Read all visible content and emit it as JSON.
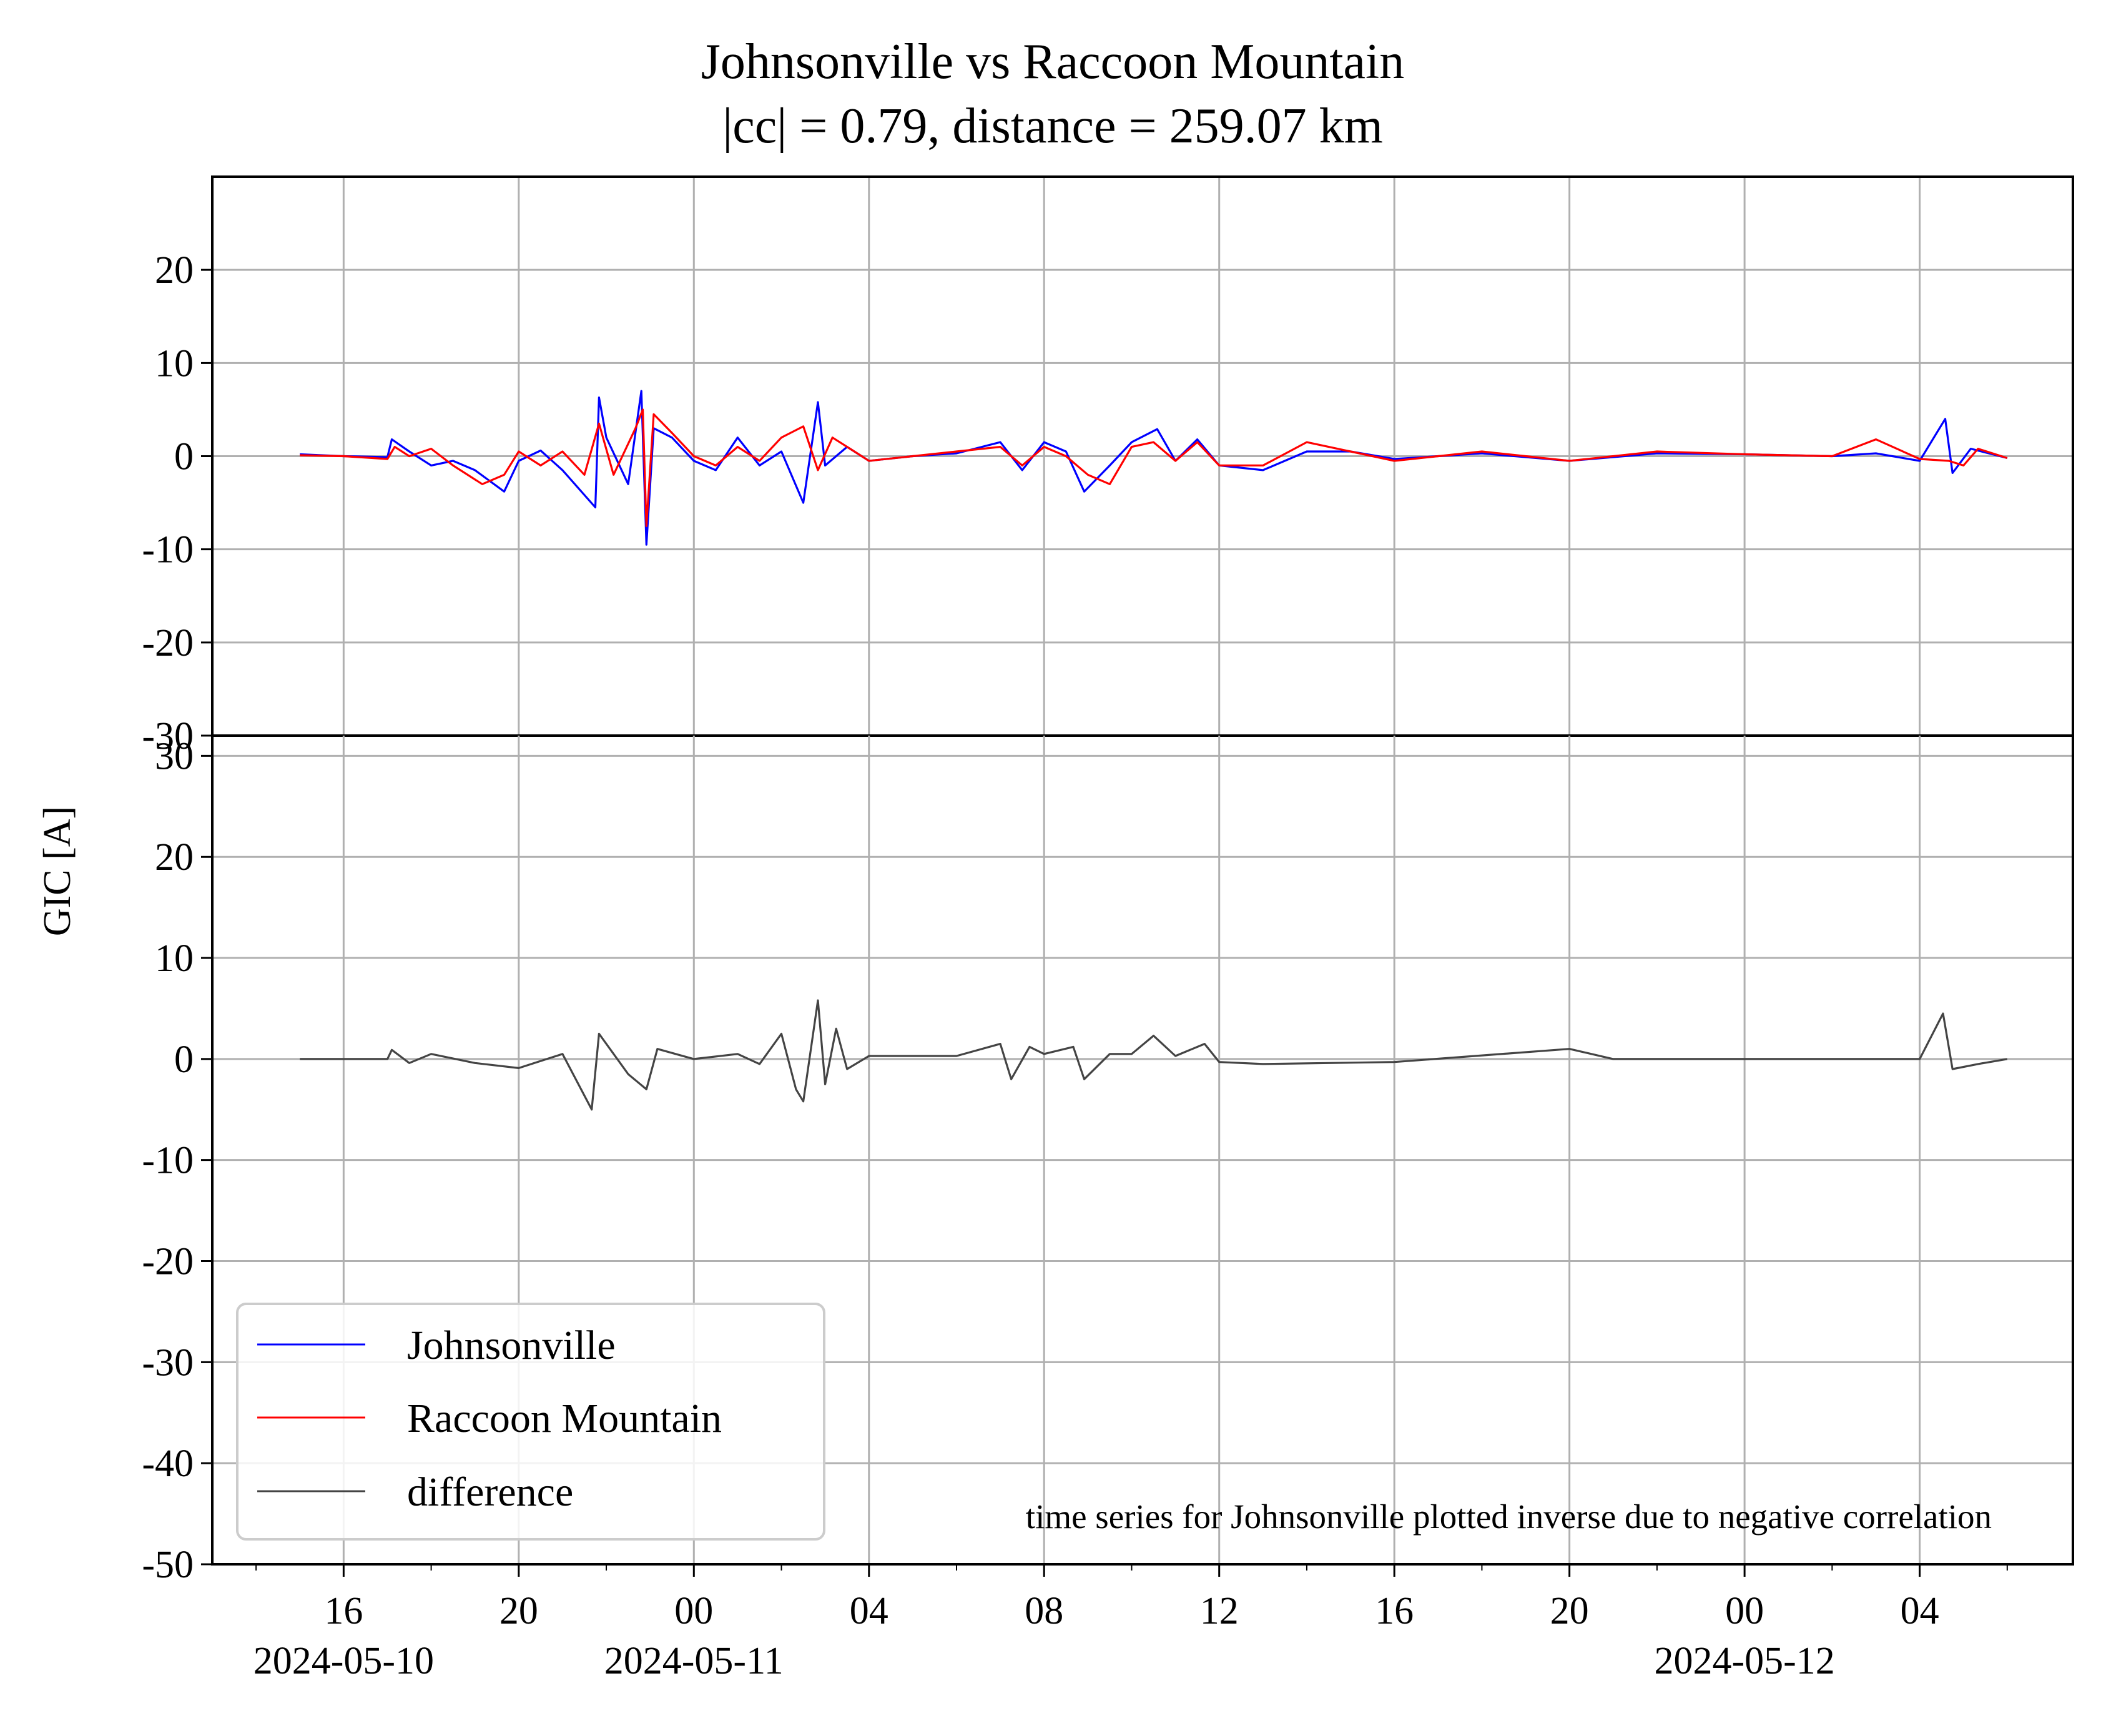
{
  "chart_data": {
    "type": "line",
    "title": "Johnsonville vs Raccoon Mountain",
    "subtitle": "|cc| = 0.79, distance = 259.07 km",
    "ylabel": "GIC [A]",
    "xlabel": "",
    "note": "time series for Johnsonville plotted inverse due to negative correlation",
    "x_range": [
      "2024-05-10 13:00",
      "2024-05-12 07:30"
    ],
    "x_tick_labels": [
      "16",
      "20",
      "00",
      "04",
      "08",
      "12",
      "16",
      "20",
      "00",
      "04"
    ],
    "x_date_labels": [
      "2024-05-10",
      "2024-05-11",
      "2024-05-12"
    ],
    "grid": true,
    "legend_position": "lower-left",
    "panels": [
      {
        "ylim": [
          -30,
          30
        ],
        "y_ticks": [
          "20",
          "10",
          "0",
          "-10",
          "-20",
          "-30"
        ],
        "series": [
          {
            "name": "Johnsonville",
            "color": "#0000ff",
            "points": [
              [
                "2024-05-10 15:00",
                0.2
              ],
              [
                "2024-05-10 16:00",
                0.0
              ],
              [
                "2024-05-10 17:00",
                -0.1
              ],
              [
                "2024-05-10 17:06",
                1.8
              ],
              [
                "2024-05-10 17:30",
                0.5
              ],
              [
                "2024-05-10 18:00",
                -1.0
              ],
              [
                "2024-05-10 18:30",
                -0.5
              ],
              [
                "2024-05-10 19:00",
                -1.5
              ],
              [
                "2024-05-10 19:40",
                -3.8
              ],
              [
                "2024-05-10 20:00",
                -0.5
              ],
              [
                "2024-05-10 20:30",
                0.6
              ],
              [
                "2024-05-10 21:00",
                -1.5
              ],
              [
                "2024-05-10 21:45",
                -5.5
              ],
              [
                "2024-05-10 21:50",
                6.3
              ],
              [
                "2024-05-10 22:00",
                2.0
              ],
              [
                "2024-05-10 22:30",
                -3.0
              ],
              [
                "2024-05-10 22:48",
                7.0
              ],
              [
                "2024-05-10 22:55",
                -9.5
              ],
              [
                "2024-05-10 23:05",
                3.0
              ],
              [
                "2024-05-10 23:30",
                2.0
              ],
              [
                "2024-05-11 00:00",
                -0.5
              ],
              [
                "2024-05-11 00:30",
                -1.5
              ],
              [
                "2024-05-11 01:00",
                2.0
              ],
              [
                "2024-05-11 01:30",
                -1.0
              ],
              [
                "2024-05-11 02:00",
                0.5
              ],
              [
                "2024-05-11 02:30",
                -5.0
              ],
              [
                "2024-05-11 02:50",
                5.8
              ],
              [
                "2024-05-11 03:00",
                -1.0
              ],
              [
                "2024-05-11 03:30",
                1.0
              ],
              [
                "2024-05-11 04:00",
                -0.5
              ],
              [
                "2024-05-11 05:00",
                0.0
              ],
              [
                "2024-05-11 06:00",
                0.3
              ],
              [
                "2024-05-11 07:00",
                1.5
              ],
              [
                "2024-05-11 07:30",
                -1.5
              ],
              [
                "2024-05-11 08:00",
                1.5
              ],
              [
                "2024-05-11 08:30",
                0.5
              ],
              [
                "2024-05-11 08:55",
                -3.8
              ],
              [
                "2024-05-11 09:30",
                -1.0
              ],
              [
                "2024-05-11 10:00",
                1.5
              ],
              [
                "2024-05-11 10:35",
                2.9
              ],
              [
                "2024-05-11 11:00",
                -0.5
              ],
              [
                "2024-05-11 11:30",
                1.8
              ],
              [
                "2024-05-11 12:00",
                -1.0
              ],
              [
                "2024-05-11 13:00",
                -1.5
              ],
              [
                "2024-05-11 14:00",
                0.5
              ],
              [
                "2024-05-11 15:00",
                0.5
              ],
              [
                "2024-05-11 16:00",
                -0.3
              ],
              [
                "2024-05-11 18:00",
                0.3
              ],
              [
                "2024-05-11 20:00",
                -0.5
              ],
              [
                "2024-05-11 22:00",
                0.3
              ],
              [
                "2024-05-12 00:00",
                0.2
              ],
              [
                "2024-05-12 02:00",
                0.0
              ],
              [
                "2024-05-12 03:00",
                0.3
              ],
              [
                "2024-05-12 04:00",
                -0.5
              ],
              [
                "2024-05-12 04:35",
                4.0
              ],
              [
                "2024-05-12 04:45",
                -1.8
              ],
              [
                "2024-05-12 05:10",
                0.8
              ],
              [
                "2024-05-12 06:00",
                -0.2
              ]
            ]
          },
          {
            "name": "Raccoon Mountain",
            "color": "#ff0000",
            "points": [
              [
                "2024-05-10 15:00",
                0.1
              ],
              [
                "2024-05-10 16:00",
                0.0
              ],
              [
                "2024-05-10 17:00",
                -0.3
              ],
              [
                "2024-05-10 17:10",
                1.0
              ],
              [
                "2024-05-10 17:30",
                0.0
              ],
              [
                "2024-05-10 18:00",
                0.8
              ],
              [
                "2024-05-10 18:30",
                -1.0
              ],
              [
                "2024-05-10 19:10",
                -3.0
              ],
              [
                "2024-05-10 19:40",
                -2.0
              ],
              [
                "2024-05-10 20:00",
                0.5
              ],
              [
                "2024-05-10 20:30",
                -1.0
              ],
              [
                "2024-05-10 21:00",
                0.5
              ],
              [
                "2024-05-10 21:30",
                -2.0
              ],
              [
                "2024-05-10 21:50",
                3.5
              ],
              [
                "2024-05-10 22:10",
                -2.0
              ],
              [
                "2024-05-10 22:40",
                3.0
              ],
              [
                "2024-05-10 22:50",
                5.0
              ],
              [
                "2024-05-10 22:55",
                -7.5
              ],
              [
                "2024-05-10 23:05",
                4.5
              ],
              [
                "2024-05-10 23:30",
                2.5
              ],
              [
                "2024-05-11 00:00",
                0.0
              ],
              [
                "2024-05-11 00:30",
                -1.0
              ],
              [
                "2024-05-11 01:00",
                1.0
              ],
              [
                "2024-05-11 01:30",
                -0.5
              ],
              [
                "2024-05-11 02:00",
                2.0
              ],
              [
                "2024-05-11 02:30",
                3.2
              ],
              [
                "2024-05-11 02:50",
                -1.5
              ],
              [
                "2024-05-11 03:10",
                2.0
              ],
              [
                "2024-05-11 03:40",
                0.5
              ],
              [
                "2024-05-11 04:00",
                -0.5
              ],
              [
                "2024-05-11 05:00",
                0.0
              ],
              [
                "2024-05-11 06:00",
                0.5
              ],
              [
                "2024-05-11 07:00",
                1.0
              ],
              [
                "2024-05-11 07:30",
                -1.0
              ],
              [
                "2024-05-11 08:00",
                1.0
              ],
              [
                "2024-05-11 08:30",
                0.0
              ],
              [
                "2024-05-11 09:00",
                -2.0
              ],
              [
                "2024-05-11 09:30",
                -3.0
              ],
              [
                "2024-05-11 10:00",
                1.0
              ],
              [
                "2024-05-11 10:30",
                1.5
              ],
              [
                "2024-05-11 11:00",
                -0.5
              ],
              [
                "2024-05-11 11:30",
                1.5
              ],
              [
                "2024-05-11 12:00",
                -1.0
              ],
              [
                "2024-05-11 13:00",
                -1.0
              ],
              [
                "2024-05-11 14:00",
                1.5
              ],
              [
                "2024-05-11 15:00",
                0.5
              ],
              [
                "2024-05-11 16:00",
                -0.5
              ],
              [
                "2024-05-11 18:00",
                0.5
              ],
              [
                "2024-05-11 20:00",
                -0.5
              ],
              [
                "2024-05-11 22:00",
                0.5
              ],
              [
                "2024-05-12 00:00",
                0.2
              ],
              [
                "2024-05-12 02:00",
                0.0
              ],
              [
                "2024-05-12 03:00",
                1.8
              ],
              [
                "2024-05-12 04:00",
                -0.3
              ],
              [
                "2024-05-12 04:40",
                -0.5
              ],
              [
                "2024-05-12 05:00",
                -1.0
              ],
              [
                "2024-05-12 05:20",
                0.8
              ],
              [
                "2024-05-12 06:00",
                -0.2
              ]
            ]
          }
        ]
      },
      {
        "ylim": [
          -50,
          32
        ],
        "y_ticks": [
          "30",
          "20",
          "10",
          "0",
          "-10",
          "-20",
          "-30",
          "-40",
          "-50"
        ],
        "series": [
          {
            "name": "difference",
            "color": "#444444",
            "points": [
              [
                "2024-05-10 15:00",
                0.0
              ],
              [
                "2024-05-10 17:00",
                0.0
              ],
              [
                "2024-05-10 17:06",
                0.9
              ],
              [
                "2024-05-10 17:30",
                -0.4
              ],
              [
                "2024-05-10 18:00",
                0.5
              ],
              [
                "2024-05-10 19:00",
                -0.4
              ],
              [
                "2024-05-10 20:00",
                -0.9
              ],
              [
                "2024-05-10 21:00",
                0.5
              ],
              [
                "2024-05-10 21:40",
                -5.0
              ],
              [
                "2024-05-10 21:50",
                2.5
              ],
              [
                "2024-05-10 22:30",
                -1.5
              ],
              [
                "2024-05-10 22:55",
                -3.0
              ],
              [
                "2024-05-10 23:10",
                1.0
              ],
              [
                "2024-05-11 00:00",
                0.0
              ],
              [
                "2024-05-11 01:00",
                0.5
              ],
              [
                "2024-05-11 01:30",
                -0.5
              ],
              [
                "2024-05-11 02:00",
                2.5
              ],
              [
                "2024-05-11 02:20",
                -3.0
              ],
              [
                "2024-05-11 02:30",
                -4.2
              ],
              [
                "2024-05-11 02:50",
                5.8
              ],
              [
                "2024-05-11 03:00",
                -2.5
              ],
              [
                "2024-05-11 03:15",
                3.0
              ],
              [
                "2024-05-11 03:30",
                -1.0
              ],
              [
                "2024-05-11 04:00",
                0.3
              ],
              [
                "2024-05-11 06:00",
                0.3
              ],
              [
                "2024-05-11 07:00",
                1.5
              ],
              [
                "2024-05-11 07:15",
                -2.0
              ],
              [
                "2024-05-11 07:40",
                1.2
              ],
              [
                "2024-05-11 08:00",
                0.5
              ],
              [
                "2024-05-11 08:40",
                1.2
              ],
              [
                "2024-05-11 08:55",
                -2.0
              ],
              [
                "2024-05-11 09:30",
                0.5
              ],
              [
                "2024-05-11 10:00",
                0.5
              ],
              [
                "2024-05-11 10:30",
                2.3
              ],
              [
                "2024-05-11 11:00",
                0.3
              ],
              [
                "2024-05-11 11:40",
                1.5
              ],
              [
                "2024-05-11 12:00",
                -0.3
              ],
              [
                "2024-05-11 13:00",
                -0.5
              ],
              [
                "2024-05-11 16:00",
                -0.3
              ],
              [
                "2024-05-11 20:00",
                1.0
              ],
              [
                "2024-05-11 21:00",
                0.0
              ],
              [
                "2024-05-12 00:00",
                0.0
              ],
              [
                "2024-05-12 04:00",
                0.0
              ],
              [
                "2024-05-12 04:32",
                4.5
              ],
              [
                "2024-05-12 04:45",
                -1.0
              ],
              [
                "2024-05-12 05:20",
                -0.5
              ],
              [
                "2024-05-12 06:00",
                0.0
              ]
            ]
          }
        ]
      }
    ],
    "legend": [
      {
        "label": "Johnsonville",
        "color": "#0000ff"
      },
      {
        "label": "Raccoon Mountain",
        "color": "#ff0000"
      },
      {
        "label": "difference",
        "color": "#444444"
      }
    ]
  }
}
